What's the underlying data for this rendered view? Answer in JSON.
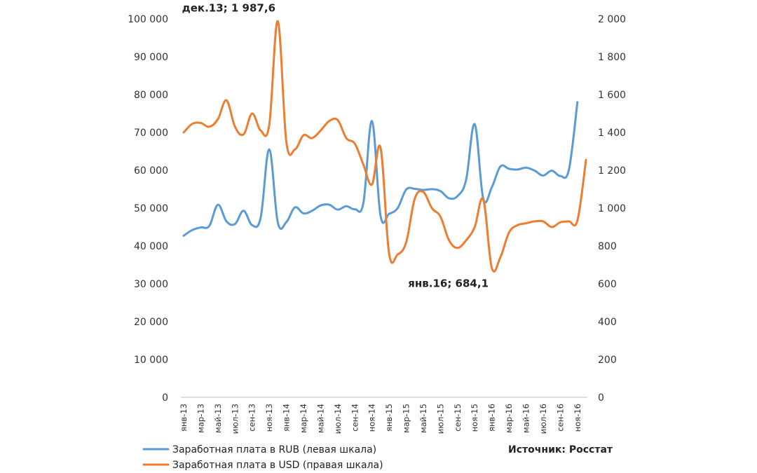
{
  "chart_data": {
    "type": "line",
    "dual_axis": true,
    "x": [
      "янв-13",
      "фев-13",
      "мар-13",
      "апр-13",
      "май-13",
      "июн-13",
      "июл-13",
      "авг-13",
      "сен-13",
      "окт-13",
      "ноя-13",
      "дек-13",
      "янв-14",
      "фев-14",
      "мар-14",
      "апр-14",
      "май-14",
      "июн-14",
      "июл-14",
      "авг-14",
      "сен-14",
      "окт-14",
      "ноя-14",
      "дек-14",
      "янв-15",
      "фев-15",
      "мар-15",
      "апр-15",
      "май-15",
      "июн-15",
      "июл-15",
      "авг-15",
      "сен-15",
      "окт-15",
      "ноя-15",
      "дек-15",
      "янв-16",
      "фев-16",
      "мар-16",
      "апр-16",
      "май-16",
      "июн-16",
      "июл-16",
      "авг-16",
      "сен-16",
      "окт-16",
      "ноя-16",
      "дек-16"
    ],
    "x_tick_labels": [
      "янв-13",
      "мар-13",
      "май-13",
      "июл-13",
      "сен-13",
      "ноя-13",
      "янв-14",
      "мар-14",
      "май-14",
      "июл-14",
      "сен-14",
      "ноя-14",
      "янв-15",
      "мар-15",
      "май-15",
      "июл-15",
      "сен-15",
      "ноя-15",
      "янв-16",
      "мар-16",
      "май-16",
      "июл-16",
      "сен-16",
      "ноя-16"
    ],
    "series": [
      {
        "name": "Заработная плата в RUB (левая шкала)",
        "axis": "left",
        "color": "#5B9BD5",
        "values": [
          42700,
          44200,
          44900,
          45300,
          50900,
          46500,
          45800,
          49300,
          45500,
          47500,
          65500,
          46200,
          46300,
          50200,
          48600,
          49300,
          50700,
          50900,
          49600,
          50500,
          49700,
          51400,
          73000,
          48000,
          48500,
          50000,
          54900,
          55100,
          54800,
          55000,
          54500,
          52600,
          53200,
          57500,
          72200,
          52500,
          55500,
          61000,
          60400,
          60200,
          60700,
          59900,
          58600,
          59900,
          58500,
          60100,
          78000,
          null
        ]
      },
      {
        "name": "Заработная плата в USD (правая шкала)",
        "axis": "right",
        "color": "#ED7D31",
        "values": [
          1400,
          1445,
          1450,
          1430,
          1470,
          1570,
          1430,
          1390,
          1500,
          1410,
          1440,
          1987.6,
          1350,
          1310,
          1385,
          1370,
          1410,
          1460,
          1465,
          1370,
          1340,
          1230,
          1125,
          1320,
          760,
          755,
          820,
          1050,
          1085,
          1000,
          955,
          830,
          790,
          830,
          900,
          1045,
          684.1,
          740,
          870,
          910,
          920,
          930,
          930,
          900,
          925,
          930,
          935,
          1255
        ]
      }
    ],
    "ylim_left": [
      0,
      100000
    ],
    "ylim_right": [
      0,
      2000
    ],
    "y_ticks_left": [
      "0",
      "10 000",
      "20 000",
      "30 000",
      "40 000",
      "50 000",
      "60 000",
      "70 000",
      "80 000",
      "90 000",
      "100 000"
    ],
    "y_ticks_right": [
      "0",
      "200",
      "400",
      "600",
      "800",
      "1 000",
      "1 200",
      "1 400",
      "1 600",
      "1 800",
      "2 000"
    ],
    "annotations": [
      {
        "text": "дек.13; 1 987,6",
        "x": "дек-13",
        "series": 1
      },
      {
        "text": "янв.16; 684,1",
        "x": "янв-16",
        "series": 1
      }
    ],
    "source": "Источник: Росстат",
    "grid": false,
    "legend_position": "bottom-left"
  }
}
